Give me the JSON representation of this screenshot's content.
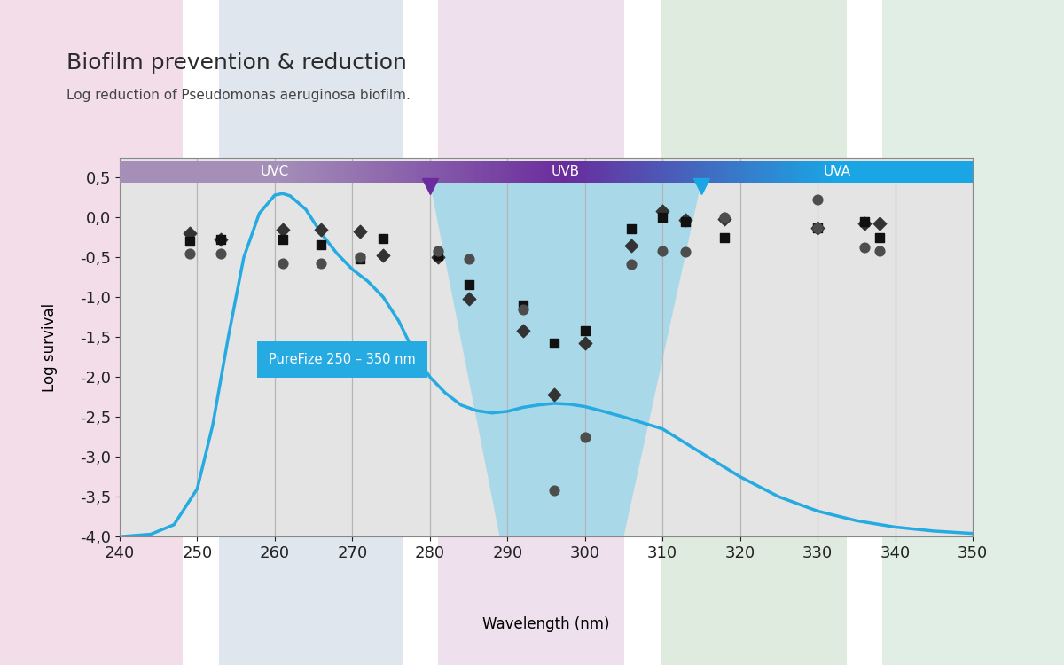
{
  "chart_data": {
    "type": "scatter",
    "title": "Biofilm prevention & reduction",
    "subtitle": "Log reduction of Pseudomonas aeruginosa biofilm.",
    "x_label": "Wavelength (nm)",
    "y_label": "Log survival",
    "xlim": [
      240,
      350
    ],
    "ylim": [
      -4.0,
      0.75
    ],
    "xticks": [
      240,
      250,
      260,
      270,
      280,
      290,
      300,
      310,
      320,
      330,
      340,
      350
    ],
    "yticks": [
      {
        "value": -4.0,
        "label": "-4,0"
      },
      {
        "value": -3.5,
        "label": "-3,5"
      },
      {
        "value": -3.0,
        "label": "-3,0"
      },
      {
        "value": -2.5,
        "label": "-2,5"
      },
      {
        "value": -2.0,
        "label": "-2,0"
      },
      {
        "value": -1.5,
        "label": "-1,5"
      },
      {
        "value": -1.0,
        "label": "-1,0"
      },
      {
        "value": -0.5,
        "label": "-0,5"
      },
      {
        "value": 0.0,
        "label": "0,0"
      },
      {
        "value": 0.5,
        "label": "0,5"
      }
    ],
    "grid": "x",
    "bands": [
      {
        "label": "UVC",
        "from": 240,
        "to": 280,
        "color": "#a58fb8"
      },
      {
        "label": "UVB",
        "from": 280,
        "to": 315,
        "color": "#6a2c9c"
      },
      {
        "label": "UVA",
        "from": 315,
        "to": 350,
        "color": "#1aa6e4"
      }
    ],
    "highlight": {
      "x_top": [
        280,
        315
      ],
      "x_bottom": [
        289,
        305
      ],
      "color": "#a9d9e9"
    },
    "series": [
      {
        "type": "scatter",
        "marker": "diamond",
        "color": "#333333",
        "x": [
          249,
          253,
          261,
          266,
          271,
          274,
          281,
          285,
          292,
          296,
          300,
          306,
          310,
          313,
          318,
          330,
          336,
          338
        ],
        "values": [
          -0.2,
          -0.27,
          -0.15,
          -0.15,
          -0.18,
          -0.48,
          -0.5,
          -1.02,
          -1.42,
          -2.22,
          -1.58,
          -0.35,
          0.08,
          -0.03,
          -0.02,
          -0.13,
          -0.08,
          -0.08
        ]
      },
      {
        "type": "scatter",
        "marker": "square",
        "color": "#111111",
        "x": [
          249,
          253,
          261,
          266,
          271,
          274,
          281,
          285,
          292,
          296,
          300,
          306,
          310,
          313,
          318,
          330,
          336,
          338
        ],
        "values": [
          -0.3,
          -0.28,
          -0.27,
          -0.34,
          -0.52,
          -0.26,
          -0.47,
          -0.84,
          -1.1,
          -1.58,
          -1.42,
          -0.14,
          0.0,
          -0.05,
          -0.25,
          -0.13,
          -0.05,
          -0.25
        ]
      },
      {
        "type": "scatter",
        "marker": "circle",
        "color": "#4d4d4d",
        "x": [
          249,
          253,
          261,
          266,
          271,
          281,
          285,
          292,
          296,
          300,
          306,
          310,
          313,
          318,
          330,
          330,
          336,
          338
        ],
        "values": [
          -0.45,
          -0.45,
          -0.58,
          -0.58,
          -0.5,
          -0.42,
          -0.52,
          -1.15,
          -3.42,
          -2.75,
          -0.59,
          -0.42,
          -0.43,
          0.0,
          0.23,
          -0.13,
          -0.38,
          -0.42
        ]
      },
      {
        "type": "line",
        "name": "PureFize 250 – 350 nm",
        "color": "#25aae1",
        "x": [
          240,
          244,
          247,
          250,
          252,
          254,
          256,
          258,
          260,
          261,
          262,
          264,
          266,
          268,
          270,
          272,
          274,
          276,
          278,
          280,
          282,
          284,
          286,
          288,
          290,
          292,
          294,
          296,
          298,
          300,
          302,
          305,
          310,
          315,
          320,
          325,
          330,
          335,
          340,
          345,
          350
        ],
        "values": [
          -4.0,
          -3.97,
          -3.85,
          -3.4,
          -2.6,
          -1.5,
          -0.5,
          0.05,
          0.28,
          0.3,
          0.27,
          0.1,
          -0.2,
          -0.45,
          -0.65,
          -0.8,
          -1.0,
          -1.3,
          -1.7,
          -2.0,
          -2.2,
          -2.35,
          -2.42,
          -2.45,
          -2.43,
          -2.38,
          -2.35,
          -2.33,
          -2.34,
          -2.37,
          -2.42,
          -2.5,
          -2.65,
          -2.95,
          -3.25,
          -3.5,
          -3.68,
          -3.8,
          -3.88,
          -3.93,
          -3.96
        ]
      }
    ]
  }
}
